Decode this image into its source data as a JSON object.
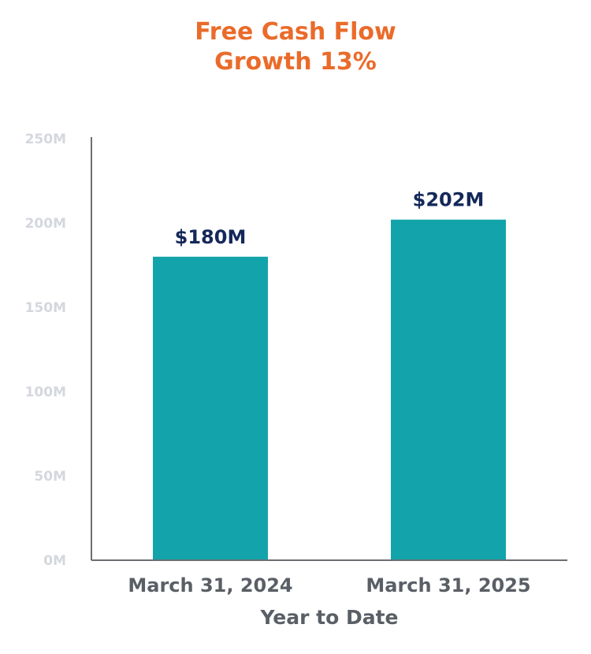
{
  "chart_data": {
    "type": "bar",
    "title": "Free Cash Flow",
    "subtitle": "Growth 13%",
    "categories": [
      "March 31, 2024",
      "March 31, 2025"
    ],
    "values": [
      180,
      202
    ],
    "data_labels": [
      "$180M",
      "$202M"
    ],
    "xlabel": "Year to Date",
    "ylabel": "",
    "ylim": [
      0,
      250
    ],
    "y_ticks": [
      0,
      50,
      100,
      150,
      200,
      250
    ],
    "y_tick_labels": [
      "0M",
      "50M",
      "100M",
      "150M",
      "200M",
      "250M"
    ],
    "grid": false,
    "legend": "none"
  },
  "colors": {
    "title": "#ea6b2a",
    "bar": "#12a4aa",
    "data_label": "#15285a",
    "axis_text": "#5a5f66",
    "tick_text": "#d4d7dd",
    "axis_line": "#6b6e73"
  }
}
